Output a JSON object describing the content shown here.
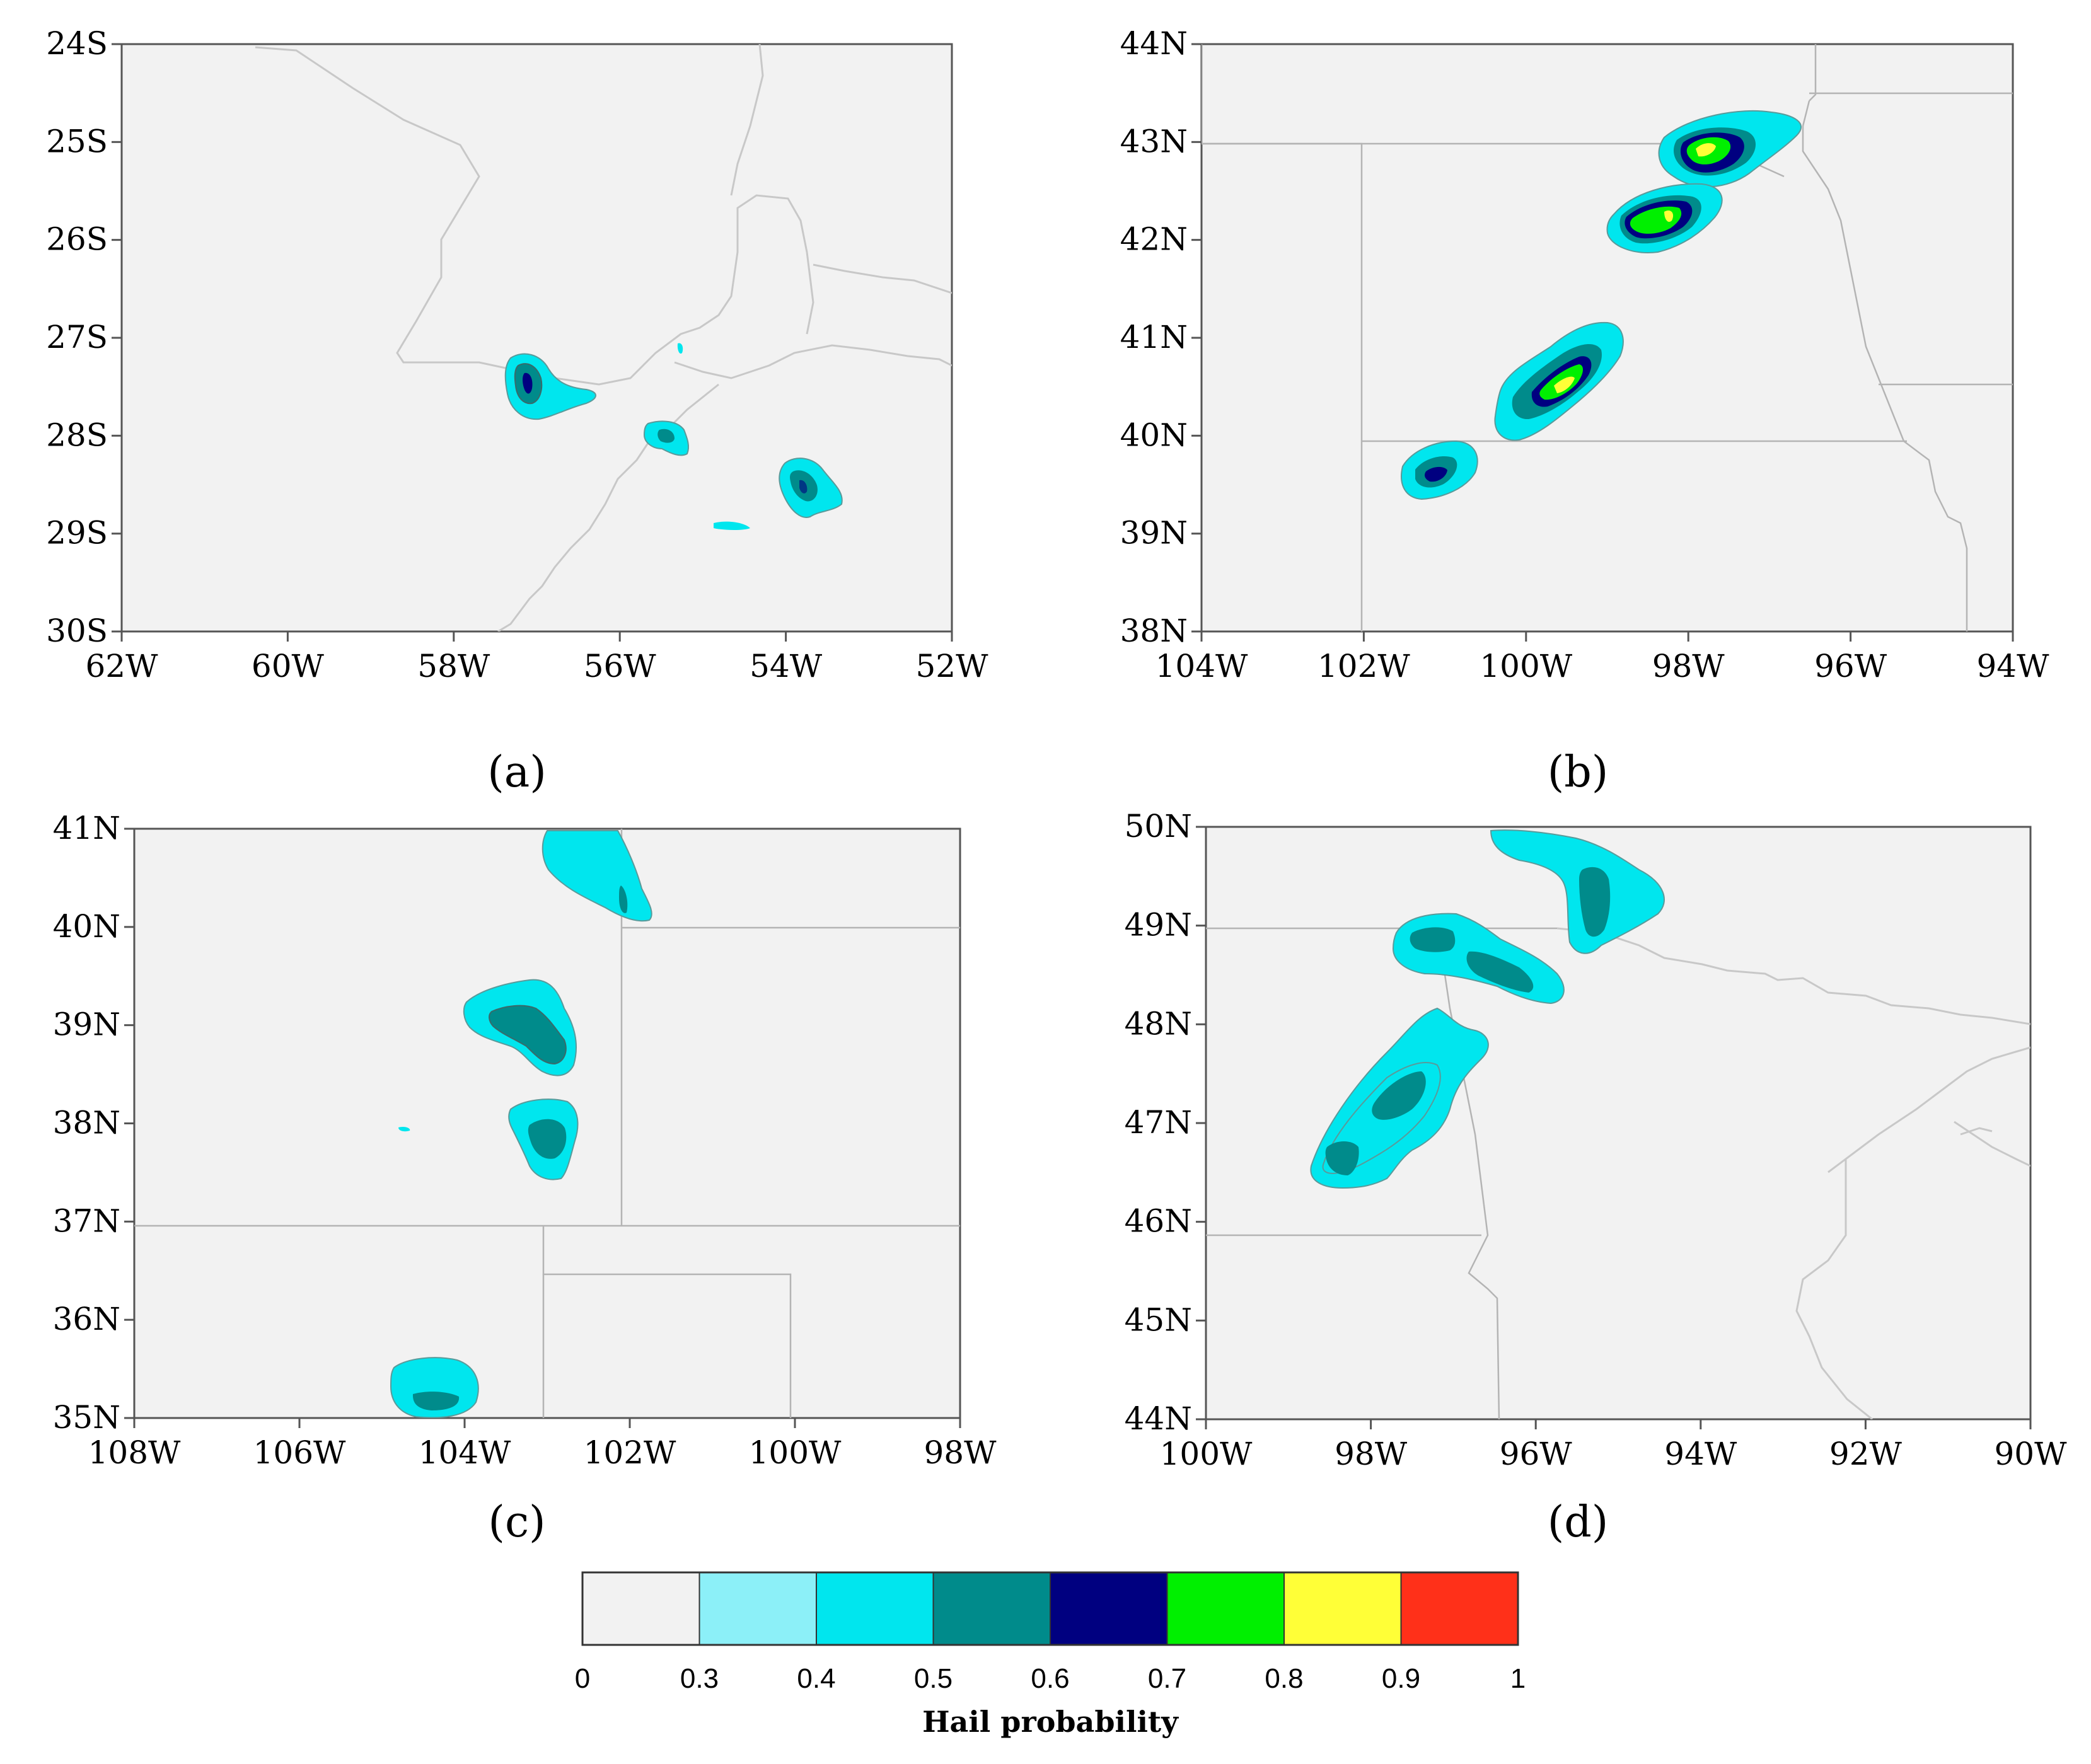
{
  "panels": [
    {
      "id": "a",
      "label": "(a)",
      "xticks": [
        "62W",
        "60W",
        "58W",
        "56W",
        "54W",
        "52W"
      ],
      "yticks": [
        "24S",
        "25S",
        "26S",
        "27S",
        "28S",
        "29S",
        "30S"
      ],
      "lon_range": [
        -62,
        -52
      ],
      "lat_range": [
        -30,
        -24
      ],
      "cells": [
        {
          "lon": -57.1,
          "lat": -27.5,
          "max": 0.6
        },
        {
          "lon": -55.4,
          "lat": -28.05,
          "max": 0.5
        },
        {
          "lon": -53.8,
          "lat": -28.6,
          "max": 0.5
        },
        {
          "lon": -54.5,
          "lat": -28.95,
          "max": 0.4
        }
      ]
    },
    {
      "id": "b",
      "label": "(b)",
      "xticks": [
        "104W",
        "102W",
        "100W",
        "98W",
        "96W",
        "94W"
      ],
      "yticks": [
        "44N",
        "43N",
        "42N",
        "41N",
        "40N",
        "39N",
        "38N"
      ],
      "lon_range": [
        -104,
        -94
      ],
      "lat_range": [
        38,
        44
      ],
      "cells": [
        {
          "lon": -97.8,
          "lat": 43.0,
          "max": 0.9
        },
        {
          "lon": -98.3,
          "lat": 42.25,
          "max": 0.9
        },
        {
          "lon": -99.4,
          "lat": 40.65,
          "max": 0.9
        },
        {
          "lon": -101.0,
          "lat": 39.65,
          "max": 0.7
        }
      ]
    },
    {
      "id": "c",
      "label": "(c)",
      "xticks": [
        "108W",
        "106W",
        "104W",
        "102W",
        "100W",
        "98W"
      ],
      "yticks": [
        "41N",
        "40N",
        "39N",
        "38N",
        "37N",
        "36N",
        "35N"
      ],
      "lon_range": [
        -108,
        -98
      ],
      "lat_range": [
        35,
        41
      ],
      "cells": [
        {
          "lon": -102.5,
          "lat": 40.5,
          "max": 0.5
        },
        {
          "lon": -103.3,
          "lat": 39.0,
          "max": 0.5
        },
        {
          "lon": -103.1,
          "lat": 38.0,
          "max": 0.5
        },
        {
          "lon": -104.3,
          "lat": 35.3,
          "max": 0.5
        }
      ]
    },
    {
      "id": "d",
      "label": "(d)",
      "xticks": [
        "100W",
        "98W",
        "96W",
        "94W",
        "92W",
        "90W"
      ],
      "yticks": [
        "50N",
        "49N",
        "48N",
        "47N",
        "46N",
        "45N",
        "44N"
      ],
      "lon_range": [
        -100,
        -90
      ],
      "lat_range": [
        44,
        50
      ],
      "cells": [
        {
          "lon": -95.2,
          "lat": 49.4,
          "max": 0.5
        },
        {
          "lon": -96.5,
          "lat": 48.7,
          "max": 0.5
        },
        {
          "lon": -97.6,
          "lat": 47.4,
          "max": 0.5
        },
        {
          "lon": -98.2,
          "lat": 46.8,
          "max": 0.5
        }
      ]
    }
  ],
  "colorbar": {
    "title": "Hail probability",
    "ticks": [
      "0",
      "0.3",
      "0.4",
      "0.5",
      "0.6",
      "0.7",
      "0.8",
      "0.9",
      "1"
    ],
    "colors": [
      "#f2f2f2",
      "#8cf0f8",
      "#00e6ee",
      "#008b8b",
      "#000080",
      "#00f000",
      "#ffff37",
      "#ff3019"
    ]
  }
}
